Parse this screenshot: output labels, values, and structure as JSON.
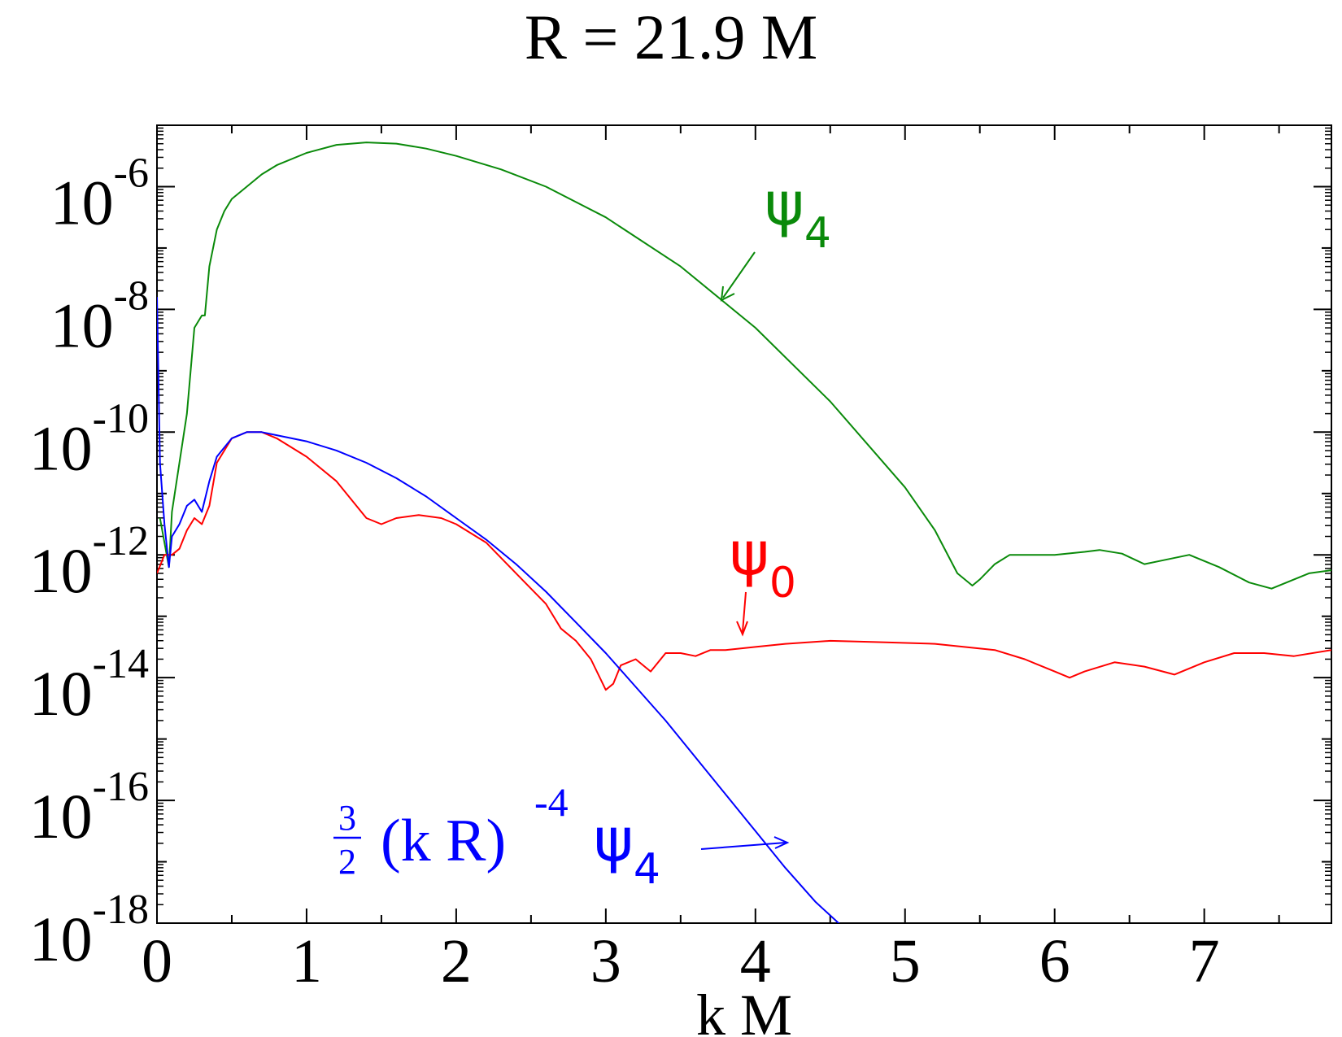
{
  "chart_data": {
    "type": "line",
    "title": "R = 21.9 M",
    "xlabel": "k M",
    "ylabel": "",
    "xlim": [
      0,
      7.85
    ],
    "ylim_log10": [
      -18,
      -5
    ],
    "yscale": "log",
    "x_ticks": [
      "0",
      "1",
      "2",
      "3",
      "4",
      "5",
      "6",
      "7"
    ],
    "y_ticks": [
      {
        "base": "10",
        "exp": "-6"
      },
      {
        "base": "10",
        "exp": "-8"
      },
      {
        "base": "10",
        "exp": "-10"
      },
      {
        "base": "10",
        "exp": "-12"
      },
      {
        "base": "10",
        "exp": "-14"
      },
      {
        "base": "10",
        "exp": "-16"
      },
      {
        "base": "10",
        "exp": "-18"
      }
    ],
    "grid": false,
    "colors": {
      "psi4": "#0a8a0a",
      "psi0": "#ff0000",
      "approx": "#0000ff"
    },
    "annotations": {
      "psi4": {
        "symbol": "ψ",
        "sub": "4"
      },
      "psi0": {
        "symbol": "ψ",
        "sub": "0"
      },
      "approx": {
        "num": "3",
        "den": "2",
        "expr": "(k R)",
        "exp": "-4",
        "symbol": "ψ",
        "sub": "4"
      }
    },
    "series": [
      {
        "key": "psi4",
        "x": [
          0.02,
          0.05,
          0.08,
          0.1,
          0.15,
          0.2,
          0.25,
          0.3,
          0.32,
          0.35,
          0.4,
          0.45,
          0.5,
          0.6,
          0.7,
          0.8,
          1.0,
          1.2,
          1.4,
          1.6,
          1.8,
          2.0,
          2.3,
          2.6,
          3.0,
          3.5,
          4.0,
          4.5,
          5.0,
          5.2,
          5.35,
          5.45,
          5.5,
          5.6,
          5.7,
          5.8,
          6.0,
          6.2,
          6.3,
          6.45,
          6.6,
          6.7,
          6.9,
          7.1,
          7.3,
          7.45,
          7.6,
          7.7,
          7.85
        ],
        "log10y": [
          -11.4,
          -11.8,
          -12.2,
          -11.3,
          -10.5,
          -9.7,
          -8.3,
          -8.1,
          -8.1,
          -7.3,
          -6.7,
          -6.4,
          -6.2,
          -6.0,
          -5.8,
          -5.65,
          -5.45,
          -5.32,
          -5.28,
          -5.3,
          -5.38,
          -5.5,
          -5.72,
          -6.0,
          -6.5,
          -7.3,
          -8.3,
          -9.5,
          -10.9,
          -11.6,
          -12.3,
          -12.5,
          -12.4,
          -12.15,
          -12.0,
          -12.0,
          -12.0,
          -11.95,
          -11.92,
          -11.98,
          -12.15,
          -12.1,
          -12.0,
          -12.2,
          -12.45,
          -12.55,
          -12.4,
          -12.3,
          -12.25
        ]
      },
      {
        "key": "psi0",
        "x": [
          0.0,
          0.05,
          0.1,
          0.15,
          0.2,
          0.25,
          0.3,
          0.35,
          0.4,
          0.5,
          0.6,
          0.7,
          0.8,
          1.0,
          1.2,
          1.4,
          1.5,
          1.6,
          1.75,
          1.9,
          2.0,
          2.2,
          2.4,
          2.6,
          2.7,
          2.8,
          2.9,
          3.0,
          3.05,
          3.1,
          3.2,
          3.3,
          3.4,
          3.5,
          3.6,
          3.7,
          3.8,
          4.0,
          4.2,
          4.5,
          4.8,
          5.2,
          5.6,
          5.8,
          6.0,
          6.1,
          6.2,
          6.4,
          6.6,
          6.8,
          7.0,
          7.2,
          7.4,
          7.6,
          7.85
        ],
        "log10y": [
          -12.3,
          -12.0,
          -12.0,
          -11.9,
          -11.6,
          -11.4,
          -11.5,
          -11.2,
          -10.5,
          -10.1,
          -10.0,
          -10.0,
          -10.1,
          -10.4,
          -10.8,
          -11.4,
          -11.5,
          -11.4,
          -11.35,
          -11.4,
          -11.5,
          -11.8,
          -12.3,
          -12.8,
          -13.2,
          -13.4,
          -13.7,
          -14.2,
          -14.1,
          -13.8,
          -13.7,
          -13.9,
          -13.6,
          -13.6,
          -13.65,
          -13.55,
          -13.55,
          -13.5,
          -13.45,
          -13.4,
          -13.42,
          -13.45,
          -13.55,
          -13.7,
          -13.9,
          -14.0,
          -13.9,
          -13.75,
          -13.82,
          -13.95,
          -13.75,
          -13.6,
          -13.6,
          -13.65,
          -13.55
        ]
      },
      {
        "key": "approx",
        "x": [
          0.0,
          0.02,
          0.05,
          0.08,
          0.1,
          0.15,
          0.2,
          0.25,
          0.3,
          0.35,
          0.4,
          0.5,
          0.6,
          0.7,
          0.8,
          1.0,
          1.2,
          1.4,
          1.6,
          1.8,
          2.0,
          2.2,
          2.4,
          2.6,
          2.8,
          3.0,
          3.2,
          3.4,
          3.6,
          3.8,
          4.0,
          4.2,
          4.4,
          4.6,
          4.75
        ],
        "log10y": [
          -7.8,
          -10.5,
          -11.5,
          -12.2,
          -11.7,
          -11.5,
          -11.2,
          -11.1,
          -11.3,
          -10.8,
          -10.4,
          -10.1,
          -10.0,
          -10.0,
          -10.05,
          -10.15,
          -10.3,
          -10.5,
          -10.75,
          -11.05,
          -11.4,
          -11.75,
          -12.15,
          -12.6,
          -13.1,
          -13.6,
          -14.15,
          -14.7,
          -15.3,
          -15.9,
          -16.5,
          -17.1,
          -17.65,
          -18.1,
          -18.5
        ]
      }
    ]
  }
}
